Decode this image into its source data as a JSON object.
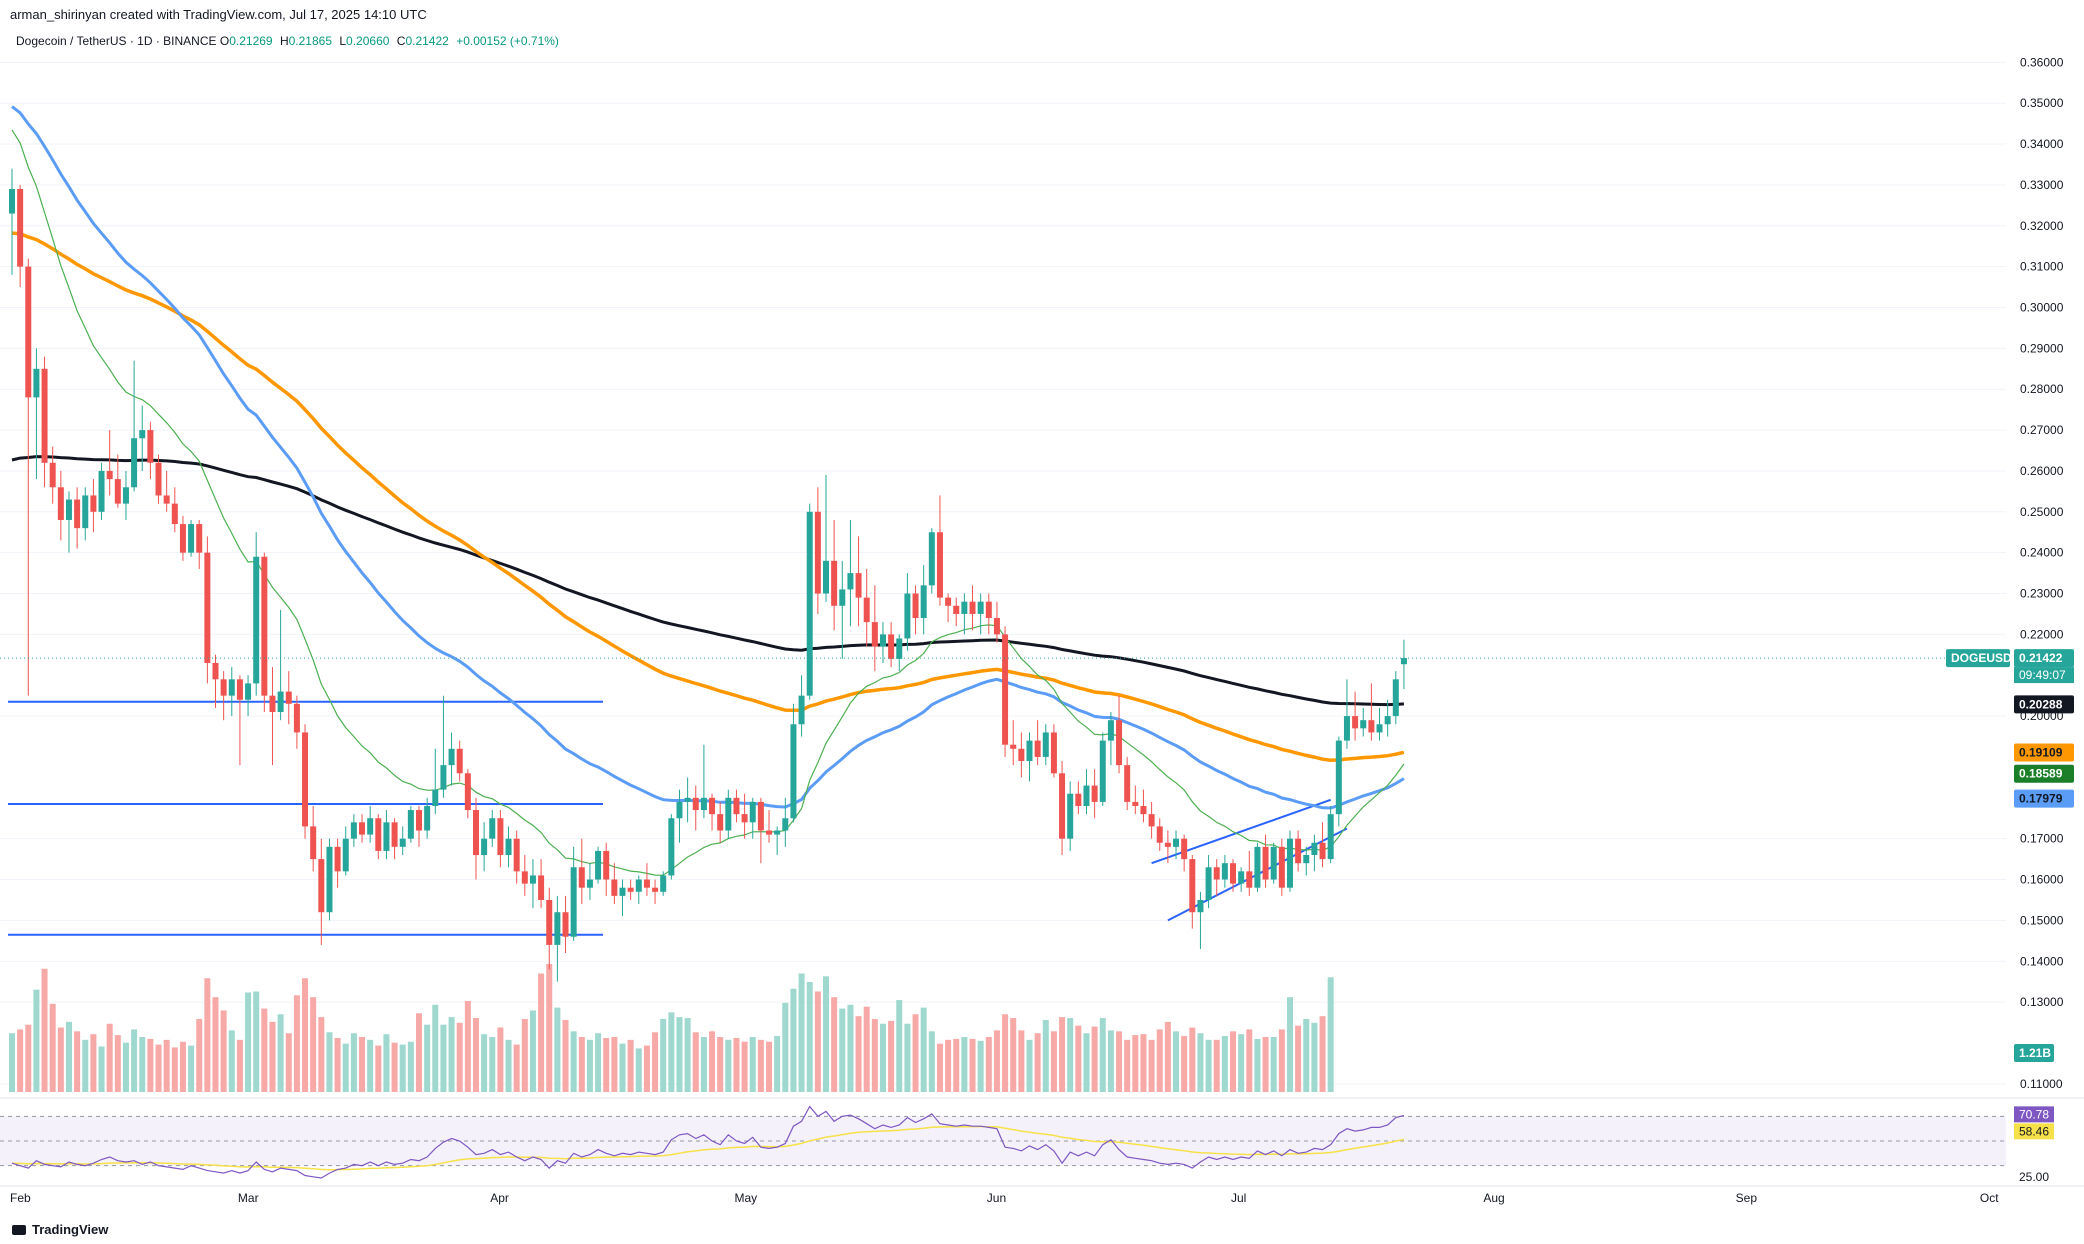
{
  "header": {
    "credit": "arman_shirinyan created with TradingView.com, Jul 17, 2025 14:10 UTC",
    "symbol": "Dogecoin / TetherUS · 1D · BINANCE",
    "o_label": "O",
    "o_value": "0.21269",
    "h_label": "H",
    "h_value": "0.21865",
    "l_label": "L",
    "l_value": "0.20660",
    "c_label": "C",
    "c_value": "0.21422",
    "change": "+0.00152 (+0.71%)"
  },
  "footer": {
    "brand": "TradingView"
  },
  "colors": {
    "up": "#26a69a",
    "down": "#ef5350",
    "ma_black": "#131722",
    "ma_orange": "#ff9800",
    "ma_blue": "#5b9cf6",
    "ma_green": "#4caf50",
    "support_lines": "#2962ff",
    "rsi": "#7e57c2",
    "rsi_ma": "#f7e14a"
  },
  "badges": {
    "symbol_tag": "DOGEUSDT",
    "price": "0.21422",
    "countdown": "09:49:07",
    "ma_black": "0.20288",
    "ma_orange": "0.19109",
    "ma_green": "0.18589",
    "ma_blue": "0.17979",
    "volume": "1.21B",
    "rsi": "70.78",
    "rsi_ma": "58.46",
    "rsi_low": "25.00"
  },
  "chart_data": {
    "type": "candlestick",
    "title": "Dogecoin / TetherUS · 1D · BINANCE",
    "y_ticks": [
      "0.36000",
      "0.35000",
      "0.34000",
      "0.33000",
      "0.32000",
      "0.31000",
      "0.30000",
      "0.29000",
      "0.28000",
      "0.27000",
      "0.26000",
      "0.25000",
      "0.24000",
      "0.23000",
      "0.22000",
      "0.20000",
      "0.17000",
      "0.16000",
      "0.15000",
      "0.14000",
      "0.13000",
      "0.11000"
    ],
    "x_ticks": [
      "Feb",
      "Mar",
      "Apr",
      "May",
      "Jun",
      "Jul",
      "Aug",
      "Sep",
      "Oct"
    ],
    "ylim": [
      0.108,
      0.364
    ],
    "date_range": [
      "2025-02-01",
      "2025-07-17"
    ],
    "horizontal_levels": [
      0.2035,
      0.1785,
      0.1465
    ],
    "channel": {
      "upper": [
        [
          0.164,
          "2025-06-21"
        ],
        [
          0.1795,
          "2025-07-13"
        ]
      ],
      "lower": [
        [
          0.15,
          "2025-06-23"
        ],
        [
          0.1725,
          "2025-07-15"
        ]
      ]
    },
    "candles": [
      [
        0.323,
        0.334,
        0.308,
        0.329
      ],
      [
        0.329,
        0.33,
        0.305,
        0.31
      ],
      [
        0.31,
        0.312,
        0.205,
        0.278
      ],
      [
        0.278,
        0.29,
        0.258,
        0.285
      ],
      [
        0.285,
        0.288,
        0.256,
        0.262
      ],
      [
        0.262,
        0.266,
        0.252,
        0.256
      ],
      [
        0.256,
        0.26,
        0.243,
        0.248
      ],
      [
        0.248,
        0.255,
        0.24,
        0.253
      ],
      [
        0.253,
        0.256,
        0.241,
        0.246
      ],
      [
        0.246,
        0.256,
        0.243,
        0.254
      ],
      [
        0.254,
        0.258,
        0.245,
        0.25
      ],
      [
        0.25,
        0.262,
        0.248,
        0.26
      ],
      [
        0.26,
        0.27,
        0.254,
        0.258
      ],
      [
        0.258,
        0.264,
        0.251,
        0.252
      ],
      [
        0.252,
        0.26,
        0.248,
        0.256
      ],
      [
        0.256,
        0.287,
        0.255,
        0.268
      ],
      [
        0.268,
        0.276,
        0.26,
        0.27
      ],
      [
        0.27,
        0.272,
        0.258,
        0.262
      ],
      [
        0.262,
        0.264,
        0.252,
        0.254
      ],
      [
        0.254,
        0.26,
        0.25,
        0.252
      ],
      [
        0.252,
        0.256,
        0.245,
        0.247
      ],
      [
        0.247,
        0.249,
        0.238,
        0.24
      ],
      [
        0.24,
        0.248,
        0.239,
        0.247
      ],
      [
        0.247,
        0.248,
        0.236,
        0.24
      ],
      [
        0.24,
        0.244,
        0.208,
        0.213
      ],
      [
        0.213,
        0.215,
        0.202,
        0.209
      ],
      [
        0.209,
        0.211,
        0.199,
        0.205
      ],
      [
        0.205,
        0.212,
        0.2,
        0.209
      ],
      [
        0.209,
        0.21,
        0.188,
        0.204
      ],
      [
        0.204,
        0.21,
        0.2,
        0.208
      ],
      [
        0.208,
        0.245,
        0.205,
        0.239
      ],
      [
        0.239,
        0.24,
        0.201,
        0.205
      ],
      [
        0.205,
        0.212,
        0.188,
        0.201
      ],
      [
        0.201,
        0.226,
        0.199,
        0.206
      ],
      [
        0.206,
        0.211,
        0.198,
        0.203
      ],
      [
        0.203,
        0.205,
        0.192,
        0.196
      ],
      [
        0.196,
        0.198,
        0.17,
        0.173
      ],
      [
        0.173,
        0.178,
        0.162,
        0.165
      ],
      [
        0.165,
        0.17,
        0.144,
        0.152
      ],
      [
        0.152,
        0.17,
        0.15,
        0.168
      ],
      [
        0.168,
        0.17,
        0.158,
        0.162
      ],
      [
        0.162,
        0.173,
        0.161,
        0.17
      ],
      [
        0.17,
        0.176,
        0.168,
        0.174
      ],
      [
        0.174,
        0.176,
        0.169,
        0.171
      ],
      [
        0.171,
        0.178,
        0.169,
        0.175
      ],
      [
        0.175,
        0.176,
        0.165,
        0.167
      ],
      [
        0.167,
        0.177,
        0.165,
        0.174
      ],
      [
        0.174,
        0.175,
        0.165,
        0.168
      ],
      [
        0.168,
        0.173,
        0.166,
        0.17
      ],
      [
        0.17,
        0.178,
        0.169,
        0.177
      ],
      [
        0.177,
        0.178,
        0.168,
        0.172
      ],
      [
        0.172,
        0.18,
        0.17,
        0.178
      ],
      [
        0.178,
        0.192,
        0.176,
        0.182
      ],
      [
        0.182,
        0.205,
        0.18,
        0.188
      ],
      [
        0.188,
        0.196,
        0.183,
        0.192
      ],
      [
        0.192,
        0.194,
        0.184,
        0.186
      ],
      [
        0.186,
        0.187,
        0.175,
        0.177
      ],
      [
        0.177,
        0.18,
        0.16,
        0.166
      ],
      [
        0.166,
        0.174,
        0.162,
        0.17
      ],
      [
        0.17,
        0.177,
        0.168,
        0.175
      ],
      [
        0.175,
        0.177,
        0.163,
        0.166
      ],
      [
        0.166,
        0.173,
        0.163,
        0.17
      ],
      [
        0.17,
        0.172,
        0.159,
        0.162
      ],
      [
        0.162,
        0.166,
        0.156,
        0.159
      ],
      [
        0.159,
        0.165,
        0.153,
        0.161
      ],
      [
        0.161,
        0.165,
        0.153,
        0.155
      ],
      [
        0.155,
        0.158,
        0.138,
        0.144
      ],
      [
        0.144,
        0.156,
        0.135,
        0.152
      ],
      [
        0.152,
        0.156,
        0.142,
        0.146
      ],
      [
        0.146,
        0.168,
        0.145,
        0.163
      ],
      [
        0.163,
        0.17,
        0.154,
        0.158
      ],
      [
        0.158,
        0.164,
        0.155,
        0.16
      ],
      [
        0.16,
        0.168,
        0.159,
        0.167
      ],
      [
        0.167,
        0.169,
        0.156,
        0.16
      ],
      [
        0.16,
        0.164,
        0.154,
        0.156
      ],
      [
        0.156,
        0.16,
        0.151,
        0.158
      ],
      [
        0.158,
        0.16,
        0.155,
        0.157
      ],
      [
        0.157,
        0.161,
        0.154,
        0.16
      ],
      [
        0.16,
        0.164,
        0.156,
        0.158
      ],
      [
        0.158,
        0.16,
        0.154,
        0.157
      ],
      [
        0.157,
        0.162,
        0.156,
        0.161
      ],
      [
        0.161,
        0.176,
        0.16,
        0.175
      ],
      [
        0.175,
        0.182,
        0.169,
        0.179
      ],
      [
        0.179,
        0.185,
        0.174,
        0.18
      ],
      [
        0.18,
        0.183,
        0.172,
        0.177
      ],
      [
        0.177,
        0.193,
        0.175,
        0.18
      ],
      [
        0.18,
        0.181,
        0.172,
        0.176
      ],
      [
        0.176,
        0.179,
        0.169,
        0.172
      ],
      [
        0.172,
        0.182,
        0.17,
        0.18
      ],
      [
        0.18,
        0.182,
        0.174,
        0.176
      ],
      [
        0.176,
        0.181,
        0.17,
        0.174
      ],
      [
        0.174,
        0.18,
        0.17,
        0.179
      ],
      [
        0.179,
        0.18,
        0.164,
        0.172
      ],
      [
        0.172,
        0.177,
        0.169,
        0.171
      ],
      [
        0.171,
        0.173,
        0.166,
        0.172
      ],
      [
        0.172,
        0.18,
        0.168,
        0.175
      ],
      [
        0.175,
        0.203,
        0.174,
        0.198
      ],
      [
        0.198,
        0.21,
        0.195,
        0.205
      ],
      [
        0.205,
        0.252,
        0.204,
        0.25
      ],
      [
        0.25,
        0.256,
        0.225,
        0.23
      ],
      [
        0.23,
        0.259,
        0.228,
        0.238
      ],
      [
        0.238,
        0.248,
        0.221,
        0.227
      ],
      [
        0.227,
        0.238,
        0.214,
        0.231
      ],
      [
        0.231,
        0.248,
        0.222,
        0.235
      ],
      [
        0.235,
        0.244,
        0.222,
        0.229
      ],
      [
        0.229,
        0.236,
        0.217,
        0.223
      ],
      [
        0.223,
        0.232,
        0.211,
        0.217
      ],
      [
        0.217,
        0.223,
        0.213,
        0.22
      ],
      [
        0.22,
        0.223,
        0.212,
        0.214
      ],
      [
        0.214,
        0.22,
        0.211,
        0.219
      ],
      [
        0.219,
        0.235,
        0.216,
        0.23
      ],
      [
        0.23,
        0.232,
        0.22,
        0.224
      ],
      [
        0.224,
        0.237,
        0.22,
        0.232
      ],
      [
        0.232,
        0.246,
        0.23,
        0.245
      ],
      [
        0.245,
        0.254,
        0.227,
        0.229
      ],
      [
        0.229,
        0.23,
        0.223,
        0.227
      ],
      [
        0.227,
        0.229,
        0.222,
        0.225
      ],
      [
        0.225,
        0.23,
        0.22,
        0.228
      ],
      [
        0.228,
        0.232,
        0.221,
        0.225
      ],
      [
        0.225,
        0.23,
        0.22,
        0.228
      ],
      [
        0.228,
        0.23,
        0.22,
        0.224
      ],
      [
        0.224,
        0.228,
        0.218,
        0.22
      ],
      [
        0.22,
        0.222,
        0.19,
        0.193
      ],
      [
        0.193,
        0.199,
        0.188,
        0.192
      ],
      [
        0.192,
        0.196,
        0.185,
        0.189
      ],
      [
        0.189,
        0.196,
        0.184,
        0.194
      ],
      [
        0.194,
        0.199,
        0.188,
        0.19
      ],
      [
        0.19,
        0.198,
        0.188,
        0.196
      ],
      [
        0.196,
        0.198,
        0.185,
        0.186
      ],
      [
        0.186,
        0.189,
        0.166,
        0.17
      ],
      [
        0.17,
        0.184,
        0.167,
        0.181
      ],
      [
        0.181,
        0.184,
        0.176,
        0.178
      ],
      [
        0.178,
        0.187,
        0.176,
        0.183
      ],
      [
        0.183,
        0.187,
        0.175,
        0.179
      ],
      [
        0.179,
        0.196,
        0.178,
        0.194
      ],
      [
        0.194,
        0.201,
        0.188,
        0.199
      ],
      [
        0.199,
        0.205,
        0.186,
        0.188
      ],
      [
        0.188,
        0.19,
        0.177,
        0.179
      ],
      [
        0.179,
        0.183,
        0.176,
        0.178
      ],
      [
        0.178,
        0.182,
        0.174,
        0.176
      ],
      [
        0.176,
        0.179,
        0.17,
        0.173
      ],
      [
        0.173,
        0.175,
        0.167,
        0.169
      ],
      [
        0.169,
        0.172,
        0.164,
        0.168
      ],
      [
        0.168,
        0.172,
        0.165,
        0.17
      ],
      [
        0.17,
        0.171,
        0.162,
        0.165
      ],
      [
        0.165,
        0.166,
        0.148,
        0.152
      ],
      [
        0.152,
        0.157,
        0.143,
        0.155
      ],
      [
        0.155,
        0.166,
        0.153,
        0.163
      ],
      [
        0.163,
        0.165,
        0.156,
        0.16
      ],
      [
        0.16,
        0.166,
        0.158,
        0.164
      ],
      [
        0.164,
        0.165,
        0.157,
        0.159
      ],
      [
        0.159,
        0.163,
        0.157,
        0.162
      ],
      [
        0.162,
        0.167,
        0.156,
        0.158
      ],
      [
        0.158,
        0.169,
        0.157,
        0.168
      ],
      [
        0.168,
        0.171,
        0.158,
        0.16
      ],
      [
        0.16,
        0.169,
        0.159,
        0.168
      ],
      [
        0.168,
        0.17,
        0.156,
        0.158
      ],
      [
        0.158,
        0.172,
        0.157,
        0.17
      ],
      [
        0.17,
        0.172,
        0.162,
        0.164
      ],
      [
        0.164,
        0.168,
        0.161,
        0.166
      ],
      [
        0.166,
        0.171,
        0.162,
        0.169
      ],
      [
        0.169,
        0.174,
        0.163,
        0.165
      ],
      [
        0.165,
        0.178,
        0.164,
        0.176
      ],
      [
        0.176,
        0.195,
        0.173,
        0.194
      ],
      [
        0.194,
        0.209,
        0.192,
        0.2
      ],
      [
        0.2,
        0.206,
        0.194,
        0.197
      ],
      [
        0.197,
        0.202,
        0.195,
        0.199
      ],
      [
        0.199,
        0.208,
        0.194,
        0.196
      ],
      [
        0.196,
        0.202,
        0.194,
        0.198
      ],
      [
        0.198,
        0.204,
        0.195,
        0.2
      ],
      [
        0.2,
        0.211,
        0.198,
        0.209
      ],
      [
        0.2127,
        0.2187,
        0.2066,
        0.2142
      ]
    ],
    "volume": [
      0.62,
      0.66,
      0.71,
      1.08,
      1.3,
      0.93,
      0.68,
      0.74,
      0.64,
      0.55,
      0.61,
      0.48,
      0.72,
      0.6,
      0.52,
      0.66,
      0.58,
      0.56,
      0.5,
      0.55,
      0.47,
      0.53,
      0.49,
      0.77,
      1.2,
      1.0,
      0.86,
      0.65,
      0.55,
      1.05,
      1.06,
      0.88,
      0.74,
      0.82,
      0.62,
      1.02,
      1.2,
      1.0,
      0.79,
      0.63,
      0.57,
      0.51,
      0.62,
      0.58,
      0.55,
      0.49,
      0.61,
      0.52,
      0.5,
      0.53,
      0.83,
      0.71,
      0.92,
      0.71,
      0.79,
      0.73,
      0.96,
      0.78,
      0.61,
      0.58,
      0.68,
      0.55,
      0.5,
      0.77,
      0.86,
      1.25,
      1.35,
      0.89,
      0.76,
      0.64,
      0.58,
      0.55,
      0.62,
      0.57,
      0.58,
      0.51,
      0.55,
      0.46,
      0.49,
      0.63,
      0.77,
      0.84,
      0.79,
      0.78,
      0.63,
      0.58,
      0.64,
      0.58,
      0.55,
      0.57,
      0.53,
      0.58,
      0.55,
      0.53,
      0.59,
      0.94,
      1.09,
      1.25,
      1.16,
      1.06,
      1.22,
      1.0,
      0.88,
      0.92,
      0.8,
      0.9,
      0.77,
      0.72,
      0.75,
      0.97,
      0.72,
      0.82,
      0.89,
      0.64,
      0.51,
      0.55,
      0.56,
      0.58,
      0.56,
      0.54,
      0.58,
      0.65,
      0.82,
      0.78,
      0.65,
      0.55,
      0.62,
      0.76,
      0.64,
      0.79,
      0.78,
      0.7,
      0.62,
      0.69,
      0.78,
      0.65,
      0.64,
      0.55,
      0.6,
      0.61,
      0.55,
      0.66,
      0.74,
      0.64,
      0.59,
      0.68,
      0.62,
      0.55,
      0.55,
      0.59,
      0.64,
      0.61,
      0.66,
      0.56,
      0.58,
      0.58,
      0.66,
      1.0,
      0.7,
      0.77,
      0.73,
      0.8,
      1.21
    ],
    "ma_black_last": 0.20288,
    "ma_orange_last": 0.19109,
    "ma_green_last": 0.18589,
    "ma_blue_last": 0.17979,
    "rsi": [
      32,
      30,
      28,
      34,
      31,
      30,
      29,
      33,
      31,
      30,
      32,
      35,
      37,
      34,
      33,
      34,
      31,
      33,
      30,
      29,
      28,
      27,
      30,
      28,
      26,
      25,
      24,
      26,
      24,
      26,
      33,
      27,
      25,
      28,
      27,
      26,
      22,
      21,
      20,
      24,
      27,
      28,
      31,
      30,
      33,
      30,
      33,
      31,
      32,
      35,
      34,
      37,
      44,
      49,
      52,
      50,
      45,
      39,
      40,
      43,
      39,
      41,
      37,
      34,
      37,
      35,
      28,
      34,
      32,
      40,
      37,
      39,
      43,
      40,
      38,
      40,
      39,
      41,
      40,
      39,
      41,
      51,
      55,
      56,
      52,
      55,
      50,
      47,
      55,
      50,
      48,
      53,
      45,
      44,
      45,
      48,
      62,
      66,
      78,
      70,
      74,
      66,
      70,
      71,
      68,
      64,
      60,
      63,
      61,
      63,
      69,
      65,
      68,
      72,
      64,
      63,
      62,
      63,
      62,
      62,
      61,
      60,
      45,
      44,
      42,
      46,
      43,
      47,
      42,
      32,
      41,
      38,
      41,
      38,
      47,
      51,
      43,
      37,
      36,
      35,
      34,
      32,
      31,
      32,
      31,
      28,
      33,
      37,
      35,
      37,
      35,
      37,
      36,
      42,
      39,
      42,
      38,
      43,
      40,
      41,
      44,
      43,
      47,
      56,
      60,
      58,
      59,
      61,
      61,
      63,
      69,
      70.78
    ],
    "rsi_ma_last": 58.46,
    "rsi_band": [
      30,
      70
    ]
  }
}
